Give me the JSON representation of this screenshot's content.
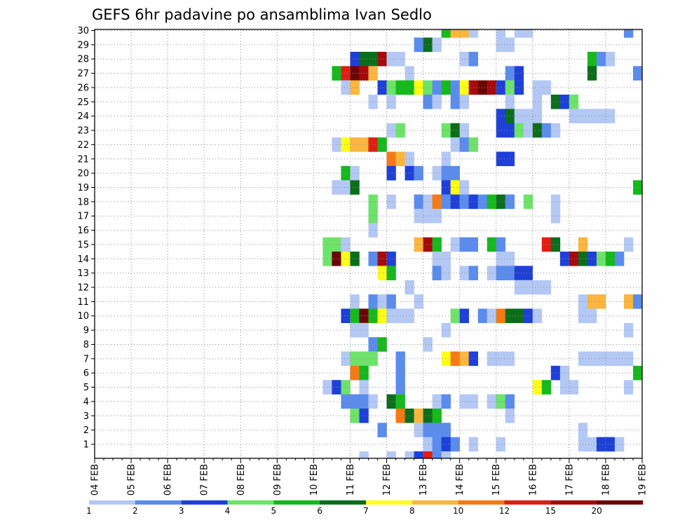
{
  "chart_data": {
    "type": "heatmap",
    "title": "GEFS 6hr padavine po ansamblima Ivan Sedlo",
    "xlabel": "",
    "ylabel": "",
    "x_tick_labels": [
      "04 FEB",
      "05 FEB",
      "06 FEB",
      "07 FEB",
      "08 FEB",
      "09 FEB",
      "10 FEB",
      "11 FEB",
      "12 FEB",
      "13 FEB",
      "14 FEB",
      "15 FEB",
      "16 FEB",
      "17 FEB",
      "18 FEB",
      "19 FEB"
    ],
    "y_tick_labels": [
      "1",
      "2",
      "3",
      "4",
      "5",
      "6",
      "7",
      "8",
      "9",
      "10",
      "11",
      "12",
      "13",
      "14",
      "15",
      "16",
      "17",
      "18",
      "19",
      "20",
      "21",
      "22",
      "23",
      "24",
      "25",
      "26",
      "27",
      "28",
      "29",
      "30"
    ],
    "grid": true,
    "time_step_hours": 6,
    "colorbar": {
      "labels": [
        "1",
        "2",
        "3",
        "4",
        "5",
        "6",
        "7",
        "8",
        "10",
        "12",
        "15",
        "20"
      ],
      "colors": [
        "#b4c8f5",
        "#5a8ced",
        "#1e40d8",
        "#6de36a",
        "#16b91c",
        "#0c6e1c",
        "#fffe17",
        "#fbb63e",
        "#f67a14",
        "#e11e14",
        "#a60a0a",
        "#6b0606"
      ]
    },
    "points_note": "Each cell: [member(0-30), 6h step index from 04 FEB 00z, color class 0-11]",
    "cells": [
      [
        30,
        38,
        4
      ],
      [
        30,
        39,
        7
      ],
      [
        30,
        40,
        7
      ],
      [
        30,
        41,
        0
      ],
      [
        30,
        44,
        0
      ],
      [
        30,
        46,
        0
      ],
      [
        30,
        47,
        0
      ],
      [
        30,
        58,
        1
      ],
      [
        29,
        35,
        1
      ],
      [
        29,
        36,
        5
      ],
      [
        29,
        37,
        0
      ],
      [
        29,
        44,
        0
      ],
      [
        29,
        45,
        0
      ],
      [
        28,
        28,
        2
      ],
      [
        28,
        29,
        5
      ],
      [
        28,
        30,
        5
      ],
      [
        28,
        31,
        10
      ],
      [
        28,
        32,
        0
      ],
      [
        28,
        33,
        0
      ],
      [
        28,
        40,
        0
      ],
      [
        28,
        41,
        1
      ],
      [
        28,
        54,
        4
      ],
      [
        28,
        55,
        1
      ],
      [
        28,
        56,
        0
      ],
      [
        27,
        26,
        4
      ],
      [
        27,
        27,
        9
      ],
      [
        27,
        28,
        11
      ],
      [
        27,
        29,
        10
      ],
      [
        27,
        30,
        7
      ],
      [
        27,
        34,
        0
      ],
      [
        27,
        45,
        1
      ],
      [
        27,
        46,
        2
      ],
      [
        27,
        54,
        5
      ],
      [
        27,
        59,
        1
      ],
      [
        26,
        27,
        0
      ],
      [
        26,
        28,
        7
      ],
      [
        26,
        31,
        2
      ],
      [
        26,
        32,
        3
      ],
      [
        26,
        33,
        4
      ],
      [
        26,
        34,
        4
      ],
      [
        26,
        35,
        6
      ],
      [
        26,
        36,
        3
      ],
      [
        26,
        37,
        1
      ],
      [
        26,
        38,
        4
      ],
      [
        26,
        39,
        1
      ],
      [
        26,
        40,
        6
      ],
      [
        26,
        41,
        10
      ],
      [
        26,
        42,
        11
      ],
      [
        26,
        43,
        10
      ],
      [
        26,
        44,
        2
      ],
      [
        26,
        45,
        3
      ],
      [
        26,
        46,
        2
      ],
      [
        26,
        48,
        0
      ],
      [
        26,
        49,
        0
      ],
      [
        25,
        30,
        0
      ],
      [
        25,
        32,
        0
      ],
      [
        25,
        36,
        1
      ],
      [
        25,
        37,
        0
      ],
      [
        25,
        39,
        1
      ],
      [
        25,
        40,
        0
      ],
      [
        25,
        45,
        0
      ],
      [
        25,
        48,
        0
      ],
      [
        25,
        50,
        5
      ],
      [
        25,
        51,
        2
      ],
      [
        25,
        52,
        3
      ],
      [
        24,
        44,
        2
      ],
      [
        24,
        45,
        5
      ],
      [
        24,
        46,
        0
      ],
      [
        24,
        47,
        0
      ],
      [
        24,
        48,
        0
      ],
      [
        24,
        52,
        0
      ],
      [
        24,
        53,
        0
      ],
      [
        24,
        54,
        0
      ],
      [
        24,
        55,
        0
      ],
      [
        24,
        56,
        0
      ],
      [
        23,
        32,
        0
      ],
      [
        23,
        33,
        3
      ],
      [
        23,
        38,
        3
      ],
      [
        23,
        39,
        5
      ],
      [
        23,
        40,
        0
      ],
      [
        23,
        44,
        2
      ],
      [
        23,
        45,
        2
      ],
      [
        23,
        46,
        3
      ],
      [
        23,
        47,
        0
      ],
      [
        23,
        48,
        5
      ],
      [
        23,
        49,
        1
      ],
      [
        23,
        50,
        0
      ],
      [
        22,
        26,
        0
      ],
      [
        22,
        27,
        6
      ],
      [
        22,
        28,
        7
      ],
      [
        22,
        29,
        7
      ],
      [
        22,
        30,
        9
      ],
      [
        22,
        31,
        4
      ],
      [
        22,
        39,
        0
      ],
      [
        22,
        40,
        1
      ],
      [
        22,
        41,
        3
      ],
      [
        21,
        32,
        8
      ],
      [
        21,
        33,
        7
      ],
      [
        21,
        34,
        0
      ],
      [
        21,
        38,
        0
      ],
      [
        21,
        44,
        2
      ],
      [
        21,
        45,
        2
      ],
      [
        20,
        27,
        4
      ],
      [
        20,
        28,
        0
      ],
      [
        20,
        32,
        2
      ],
      [
        20,
        34,
        2
      ],
      [
        20,
        35,
        1
      ],
      [
        20,
        37,
        0
      ],
      [
        20,
        38,
        1
      ],
      [
        20,
        39,
        1
      ],
      [
        19,
        26,
        0
      ],
      [
        19,
        27,
        0
      ],
      [
        19,
        28,
        5
      ],
      [
        19,
        38,
        2
      ],
      [
        19,
        39,
        6
      ],
      [
        19,
        40,
        0
      ],
      [
        19,
        59,
        4
      ],
      [
        18,
        30,
        3
      ],
      [
        18,
        32,
        0
      ],
      [
        18,
        35,
        1
      ],
      [
        18,
        36,
        0
      ],
      [
        18,
        37,
        8
      ],
      [
        18,
        38,
        1
      ],
      [
        18,
        39,
        2
      ],
      [
        18,
        40,
        1
      ],
      [
        18,
        41,
        2
      ],
      [
        18,
        42,
        1
      ],
      [
        18,
        43,
        4
      ],
      [
        18,
        44,
        5
      ],
      [
        18,
        45,
        1
      ],
      [
        18,
        47,
        3
      ],
      [
        18,
        50,
        0
      ],
      [
        17,
        30,
        3
      ],
      [
        17,
        35,
        0
      ],
      [
        17,
        36,
        0
      ],
      [
        17,
        37,
        0
      ],
      [
        17,
        50,
        0
      ],
      [
        16,
        30,
        0
      ],
      [
        15,
        25,
        3
      ],
      [
        15,
        26,
        3
      ],
      [
        15,
        27,
        0
      ],
      [
        15,
        35,
        7
      ],
      [
        15,
        36,
        10
      ],
      [
        15,
        37,
        4
      ],
      [
        15,
        39,
        0
      ],
      [
        15,
        40,
        1
      ],
      [
        15,
        41,
        1
      ],
      [
        15,
        43,
        4
      ],
      [
        15,
        44,
        1
      ],
      [
        15,
        49,
        9
      ],
      [
        15,
        50,
        5
      ],
      [
        15,
        53,
        7
      ],
      [
        15,
        58,
        0
      ],
      [
        14,
        25,
        3
      ],
      [
        14,
        26,
        11
      ],
      [
        14,
        27,
        6
      ],
      [
        14,
        28,
        5
      ],
      [
        14,
        30,
        1
      ],
      [
        14,
        31,
        10
      ],
      [
        14,
        32,
        2
      ],
      [
        14,
        37,
        0
      ],
      [
        14,
        38,
        0
      ],
      [
        14,
        44,
        0
      ],
      [
        14,
        45,
        0
      ],
      [
        14,
        51,
        2
      ],
      [
        14,
        52,
        10
      ],
      [
        14,
        53,
        5
      ],
      [
        14,
        54,
        2
      ],
      [
        14,
        55,
        3
      ],
      [
        14,
        56,
        4
      ],
      [
        14,
        57,
        1
      ],
      [
        13,
        31,
        6
      ],
      [
        13,
        32,
        4
      ],
      [
        13,
        37,
        1
      ],
      [
        13,
        38,
        0
      ],
      [
        13,
        40,
        0
      ],
      [
        13,
        41,
        1
      ],
      [
        13,
        43,
        0
      ],
      [
        13,
        44,
        1
      ],
      [
        13,
        45,
        1
      ],
      [
        13,
        46,
        2
      ],
      [
        13,
        47,
        2
      ],
      [
        12,
        34,
        0
      ],
      [
        12,
        46,
        0
      ],
      [
        12,
        47,
        0
      ],
      [
        12,
        48,
        0
      ],
      [
        12,
        49,
        0
      ],
      [
        11,
        28,
        0
      ],
      [
        11,
        30,
        1
      ],
      [
        11,
        31,
        0
      ],
      [
        11,
        32,
        1
      ],
      [
        11,
        35,
        0
      ],
      [
        11,
        53,
        0
      ],
      [
        11,
        54,
        7
      ],
      [
        11,
        55,
        7
      ],
      [
        11,
        58,
        7
      ],
      [
        11,
        59,
        1
      ],
      [
        10,
        27,
        2
      ],
      [
        10,
        28,
        4
      ],
      [
        10,
        29,
        11
      ],
      [
        10,
        30,
        4
      ],
      [
        10,
        31,
        6
      ],
      [
        10,
        32,
        0
      ],
      [
        10,
        33,
        0
      ],
      [
        10,
        34,
        0
      ],
      [
        10,
        39,
        3
      ],
      [
        10,
        40,
        2
      ],
      [
        10,
        42,
        1
      ],
      [
        10,
        43,
        0
      ],
      [
        10,
        44,
        8
      ],
      [
        10,
        45,
        5
      ],
      [
        10,
        46,
        5
      ],
      [
        10,
        47,
        2
      ],
      [
        10,
        48,
        0
      ],
      [
        10,
        53,
        0
      ],
      [
        10,
        54,
        0
      ],
      [
        9,
        28,
        0
      ],
      [
        9,
        29,
        0
      ],
      [
        9,
        38,
        0
      ],
      [
        9,
        58,
        0
      ],
      [
        8,
        30,
        1
      ],
      [
        8,
        31,
        4
      ],
      [
        8,
        36,
        0
      ],
      [
        7,
        27,
        0
      ],
      [
        7,
        28,
        3
      ],
      [
        7,
        29,
        3
      ],
      [
        7,
        30,
        3
      ],
      [
        7,
        33,
        1
      ],
      [
        7,
        38,
        6
      ],
      [
        7,
        39,
        8
      ],
      [
        7,
        40,
        7
      ],
      [
        7,
        41,
        2
      ],
      [
        7,
        43,
        0
      ],
      [
        7,
        44,
        0
      ],
      [
        7,
        45,
        0
      ],
      [
        7,
        53,
        0
      ],
      [
        7,
        54,
        0
      ],
      [
        7,
        55,
        0
      ],
      [
        7,
        56,
        0
      ],
      [
        7,
        57,
        0
      ],
      [
        7,
        58,
        0
      ],
      [
        6,
        28,
        8
      ],
      [
        6,
        29,
        4
      ],
      [
        6,
        33,
        1
      ],
      [
        6,
        50,
        2
      ],
      [
        6,
        51,
        0
      ],
      [
        6,
        59,
        4
      ],
      [
        5,
        25,
        0
      ],
      [
        5,
        26,
        2
      ],
      [
        5,
        27,
        3
      ],
      [
        5,
        29,
        0
      ],
      [
        5,
        33,
        1
      ],
      [
        5,
        48,
        6
      ],
      [
        5,
        49,
        4
      ],
      [
        5,
        51,
        0
      ],
      [
        5,
        52,
        0
      ],
      [
        5,
        58,
        0
      ],
      [
        4,
        27,
        1
      ],
      [
        4,
        28,
        1
      ],
      [
        4,
        29,
        1
      ],
      [
        4,
        30,
        0
      ],
      [
        4,
        32,
        5
      ],
      [
        4,
        33,
        4
      ],
      [
        4,
        37,
        0
      ],
      [
        4,
        38,
        1
      ],
      [
        4,
        40,
        0
      ],
      [
        4,
        41,
        0
      ],
      [
        4,
        43,
        0
      ],
      [
        4,
        44,
        3
      ],
      [
        4,
        45,
        1
      ],
      [
        3,
        28,
        3
      ],
      [
        3,
        29,
        2
      ],
      [
        3,
        33,
        8
      ],
      [
        3,
        34,
        5
      ],
      [
        3,
        35,
        7
      ],
      [
        3,
        36,
        5
      ],
      [
        3,
        37,
        4
      ],
      [
        3,
        45,
        0
      ],
      [
        2,
        31,
        1
      ],
      [
        2,
        35,
        0
      ],
      [
        2,
        36,
        1
      ],
      [
        2,
        37,
        1
      ],
      [
        2,
        38,
        1
      ],
      [
        2,
        53,
        0
      ],
      [
        1,
        36,
        0
      ],
      [
        1,
        37,
        1
      ],
      [
        1,
        38,
        2
      ],
      [
        1,
        39,
        1
      ],
      [
        1,
        41,
        0
      ],
      [
        1,
        44,
        0
      ],
      [
        1,
        53,
        0
      ],
      [
        1,
        54,
        0
      ],
      [
        1,
        55,
        2
      ],
      [
        1,
        56,
        2
      ],
      [
        1,
        57,
        0
      ],
      [
        0,
        29,
        0
      ],
      [
        0,
        32,
        0
      ],
      [
        0,
        34,
        0
      ],
      [
        0,
        35,
        2
      ],
      [
        0,
        36,
        9
      ],
      [
        0,
        37,
        1
      ],
      [
        0,
        38,
        0
      ]
    ]
  }
}
